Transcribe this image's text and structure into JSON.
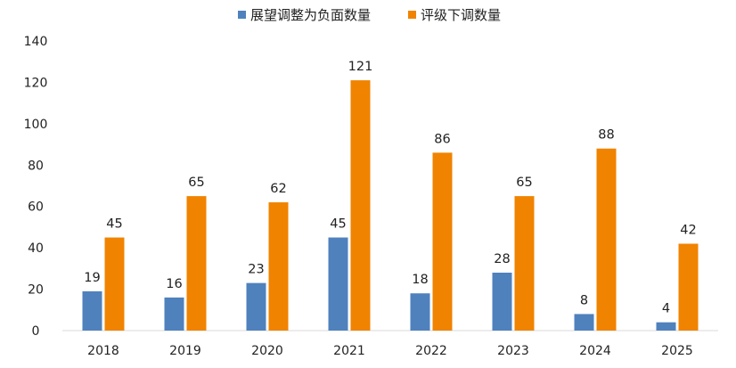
{
  "chart_data": {
    "type": "bar",
    "categories": [
      "2018",
      "2019",
      "2020",
      "2021",
      "2022",
      "2023",
      "2024",
      "2025"
    ],
    "series": [
      {
        "name": "展望调整为负面数量",
        "color": "#4f81bd",
        "values": [
          19,
          16,
          23,
          45,
          18,
          28,
          8,
          4
        ]
      },
      {
        "name": "评级下调数量",
        "color": "#f08300",
        "values": [
          45,
          65,
          62,
          121,
          86,
          65,
          88,
          42
        ]
      }
    ],
    "ylim": [
      0,
      140
    ],
    "yticks": [
      0,
      20,
      40,
      60,
      80,
      100,
      120,
      140
    ],
    "title": "",
    "xlabel": "",
    "ylabel": "",
    "legend_position": "top-center",
    "grid": false,
    "data_labels": true
  }
}
